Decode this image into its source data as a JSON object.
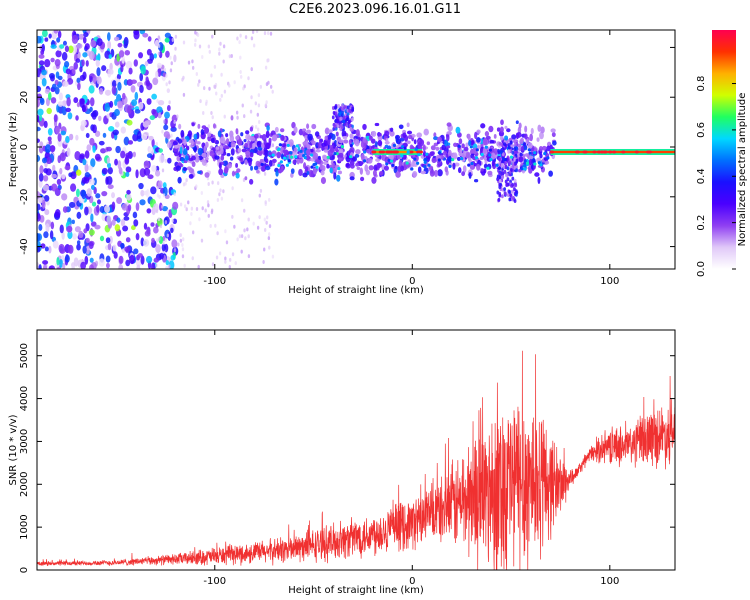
{
  "title": "C2E6.2023.096.16.01.G11",
  "chart_data": [
    {
      "type": "heatmap",
      "name": "spectrogram",
      "xlabel": "Height of straight line (km)",
      "ylabel": "Frequency (Hz)",
      "xlim": [
        -190,
        133
      ],
      "ylim": [
        -49,
        47
      ],
      "xticks": [
        -100,
        0,
        100
      ],
      "xtick_labels": [
        "-100",
        "0",
        "100"
      ],
      "yticks": [
        -40,
        -20,
        0,
        20,
        40
      ],
      "ytick_labels": [
        "-40",
        "-20",
        "0",
        "20",
        "40"
      ],
      "colorbar": {
        "label": "Normalized spectral amplitude",
        "range": [
          0,
          1
        ],
        "ticks": [
          0,
          0.2,
          0.4,
          0.6,
          0.8
        ],
        "tick_labels": [
          "0.0",
          "0.2",
          "0.4",
          "0.6",
          "0.8"
        ],
        "colormap": [
          "#ffffff",
          "#e0c8f8",
          "#8f3ff2",
          "#4a00ff",
          "#1a10ff",
          "#0070ff",
          "#00d8ff",
          "#20ff60",
          "#d0ff00",
          "#ffb000",
          "#ff3000",
          "#ff0050"
        ]
      },
      "features": [
        {
          "kind": "scatter-noise",
          "x_range": [
            -190,
            -120
          ],
          "f_range": [
            -49,
            47
          ],
          "amplitude": 0.25
        },
        {
          "kind": "band",
          "x_range": [
            -120,
            72
          ],
          "center_hz": -2,
          "width_hz": 8,
          "amplitude": 0.4
        },
        {
          "kind": "burst",
          "x": -35,
          "center_hz": 12,
          "width_hz": 5,
          "amplitude": 0.35
        },
        {
          "kind": "burst",
          "x": 48,
          "center_hz": -10,
          "width_hz": 12,
          "amplitude": 0.3
        },
        {
          "kind": "line",
          "x_range": [
            -20,
            5
          ],
          "center_hz": -2,
          "amplitude": 0.85
        },
        {
          "kind": "line",
          "x_range": [
            70,
            133
          ],
          "center_hz": -2,
          "amplitude": 0.9
        }
      ]
    },
    {
      "type": "line",
      "name": "snr",
      "xlabel": "Height of straight line (km)",
      "ylabel": "SNR (10 * v/v)",
      "xlim": [
        -190,
        133
      ],
      "ylim": [
        0,
        5600
      ],
      "xticks": [
        -100,
        0,
        100
      ],
      "xtick_labels": [
        "-100",
        "0",
        "100"
      ],
      "yticks": [
        0,
        1000,
        2000,
        3000,
        4000,
        5000
      ],
      "ytick_labels": [
        "0",
        "1000",
        "2000",
        "3000",
        "4000",
        "5000"
      ],
      "color": "#f03030",
      "envelope": [
        {
          "x": -190,
          "mean": 150,
          "amp": 60
        },
        {
          "x": -150,
          "mean": 170,
          "amp": 80
        },
        {
          "x": -120,
          "mean": 250,
          "amp": 150
        },
        {
          "x": -100,
          "mean": 320,
          "amp": 250
        },
        {
          "x": -80,
          "mean": 400,
          "amp": 300
        },
        {
          "x": -60,
          "mean": 500,
          "amp": 400
        },
        {
          "x": -40,
          "mean": 650,
          "amp": 500
        },
        {
          "x": -20,
          "mean": 850,
          "amp": 600
        },
        {
          "x": 0,
          "mean": 1100,
          "amp": 700
        },
        {
          "x": 15,
          "mean": 1400,
          "amp": 900
        },
        {
          "x": 30,
          "mean": 1700,
          "amp": 1700
        },
        {
          "x": 45,
          "mean": 2000,
          "amp": 2600
        },
        {
          "x": 60,
          "mean": 2100,
          "amp": 2600
        },
        {
          "x": 75,
          "mean": 2000,
          "amp": 900
        },
        {
          "x": 82,
          "mean": 2200,
          "amp": 150
        },
        {
          "x": 90,
          "mean": 2700,
          "amp": 200
        },
        {
          "x": 100,
          "mean": 2900,
          "amp": 500
        },
        {
          "x": 110,
          "mean": 2900,
          "amp": 600
        },
        {
          "x": 120,
          "mean": 3100,
          "amp": 800
        },
        {
          "x": 133,
          "mean": 3200,
          "amp": 900
        }
      ]
    }
  ]
}
